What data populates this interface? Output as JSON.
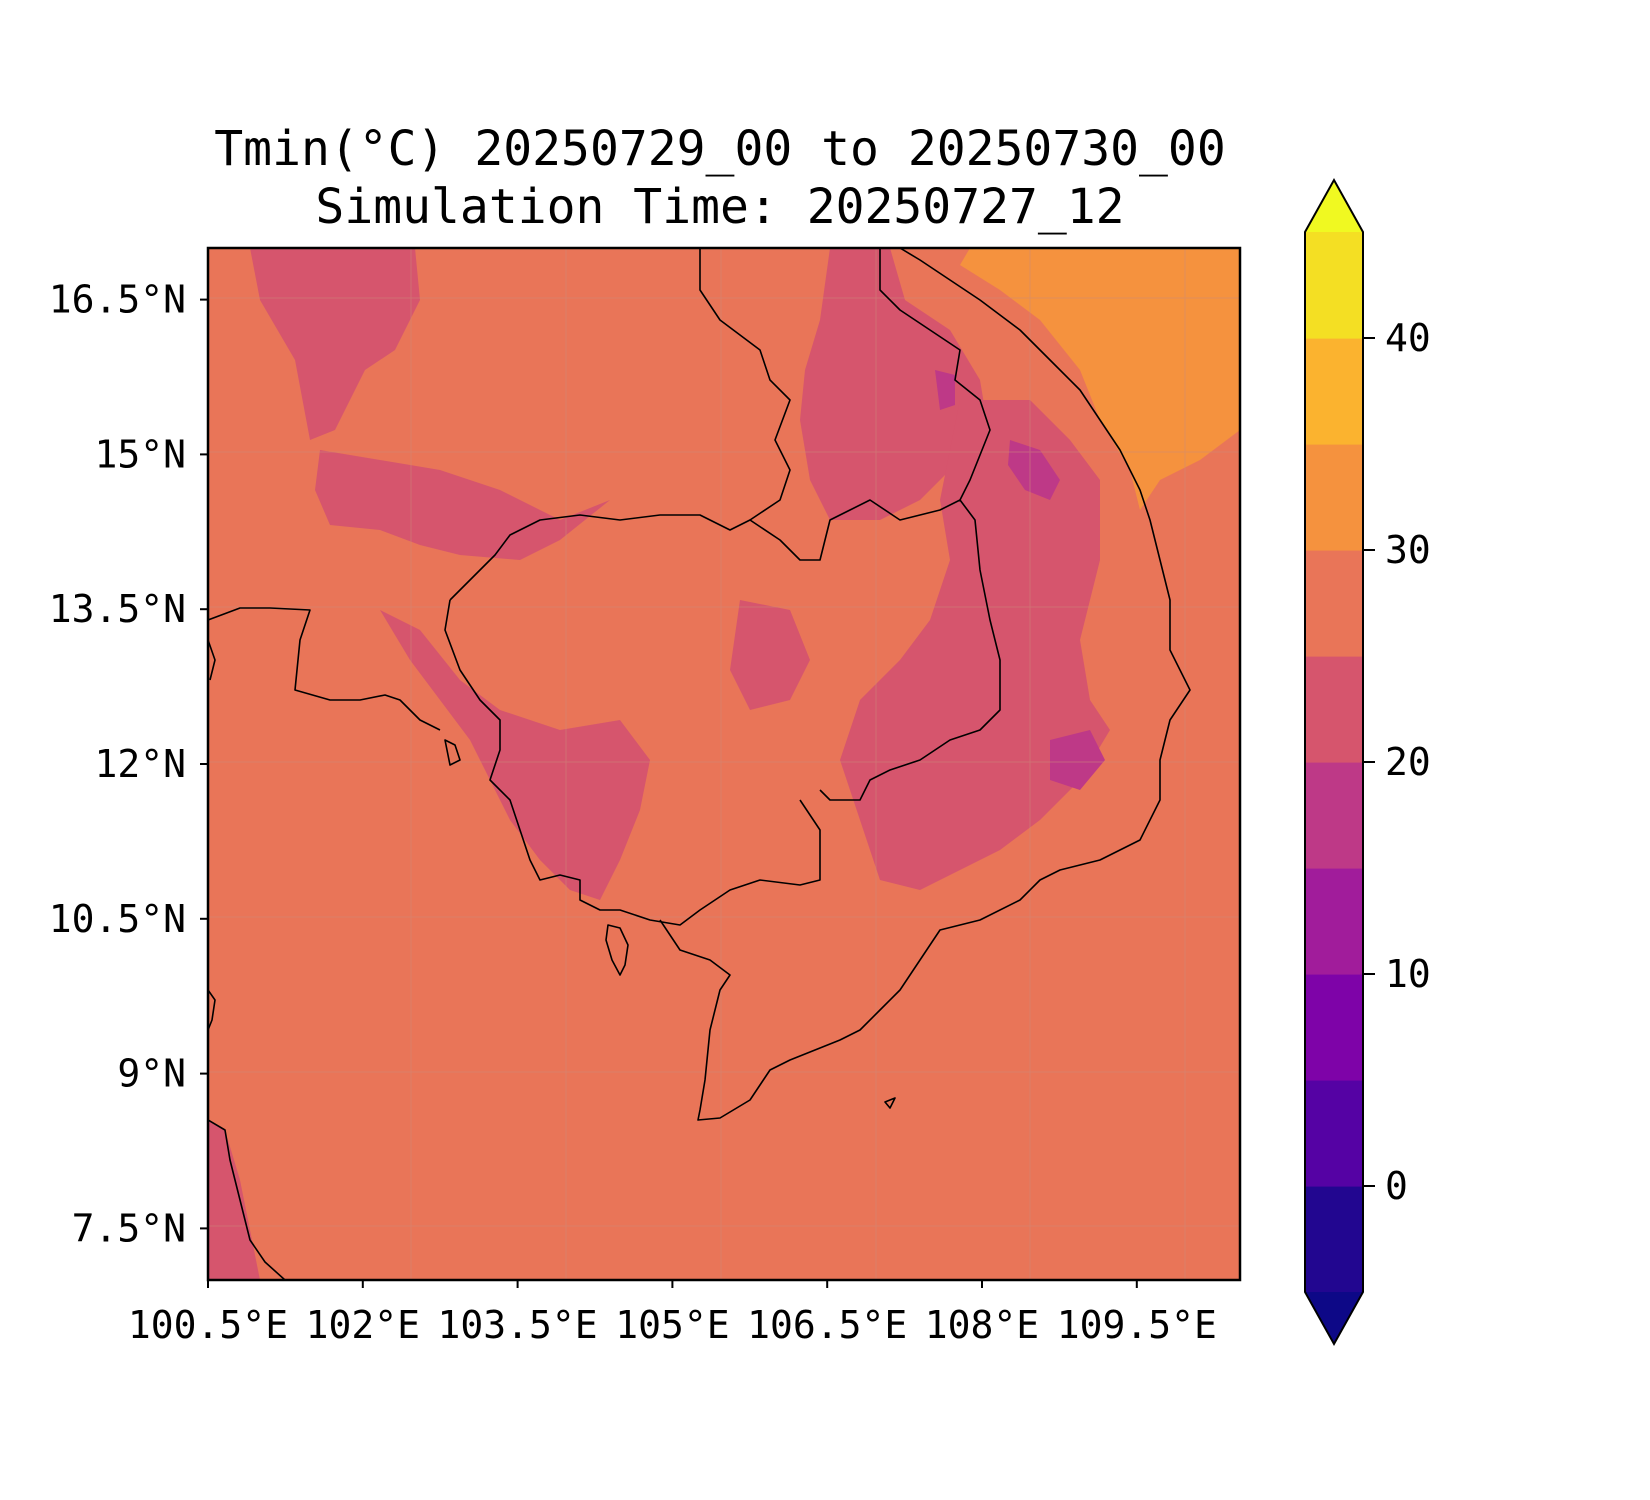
{
  "title": {
    "line1": "Tmin(°C) 20250729_00 to 20250730_00",
    "line2": "Simulation Time: 20250727_12"
  },
  "map": {
    "lat_range": [
      7.0,
      17.0
    ],
    "lon_range": [
      100.5,
      110.5
    ],
    "lat_ticks": [
      {
        "value": 16.5,
        "label": "16.5°N"
      },
      {
        "value": 15,
        "label": "15°N"
      },
      {
        "value": 13.5,
        "label": "13.5°N"
      },
      {
        "value": 12,
        "label": "12°N"
      },
      {
        "value": 10.5,
        "label": "10.5°N"
      },
      {
        "value": 9,
        "label": "9°N"
      },
      {
        "value": 7.5,
        "label": "7.5°N"
      }
    ],
    "lon_ticks": [
      {
        "value": 100.5,
        "label": "100.5°E"
      },
      {
        "value": 102,
        "label": "102°E"
      },
      {
        "value": 103.5,
        "label": "103.5°E"
      },
      {
        "value": 105,
        "label": "105°E"
      },
      {
        "value": 106.5,
        "label": "106.5°E"
      },
      {
        "value": 108,
        "label": "108°E"
      },
      {
        "value": 109.5,
        "label": "109.5°E"
      }
    ],
    "gridlines": true,
    "dominant_range_c": [
      25,
      30
    ]
  },
  "colorbar": {
    "range": [
      -5,
      45
    ],
    "extend": "both",
    "levels": [
      {
        "from": -5,
        "to": 0,
        "color": "#220690"
      },
      {
        "from": 0,
        "to": 5,
        "color": "#5502a4"
      },
      {
        "from": 5,
        "to": 10,
        "color": "#7e03a8"
      },
      {
        "from": 10,
        "to": 15,
        "color": "#a11c9b"
      },
      {
        "from": 15,
        "to": 20,
        "color": "#be3987"
      },
      {
        "from": 20,
        "to": 25,
        "color": "#d6556d"
      },
      {
        "from": 25,
        "to": 30,
        "color": "#e97558"
      },
      {
        "from": 30,
        "to": 35,
        "color": "#f5923e"
      },
      {
        "from": 35,
        "to": 40,
        "color": "#fbb32f"
      },
      {
        "from": 40,
        "to": 45,
        "color": "#f4df23"
      }
    ],
    "under_color": "#0d0887",
    "over_color": "#f0f921",
    "ticks": [
      {
        "value": 0,
        "label": "0"
      },
      {
        "value": 10,
        "label": "10"
      },
      {
        "value": 20,
        "label": "20"
      },
      {
        "value": 30,
        "label": "30"
      },
      {
        "value": 40,
        "label": "40"
      }
    ]
  }
}
